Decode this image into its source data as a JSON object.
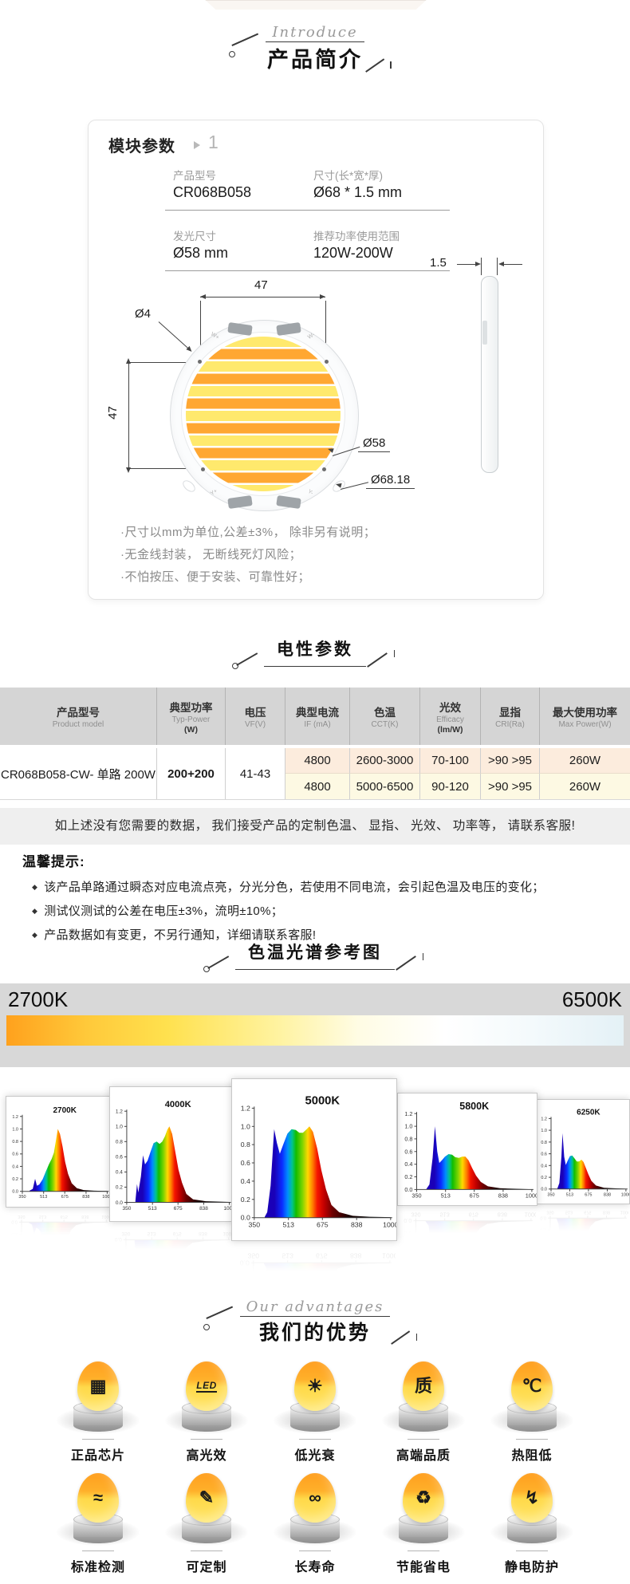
{
  "intro": {
    "script": "Introduce",
    "title": "产品简介"
  },
  "module_card": {
    "title": "模块参数",
    "badge": "1",
    "specs": [
      {
        "label": "产品型号",
        "value": "CR068B058"
      },
      {
        "label": "尺寸(长*宽*厚)",
        "value": "Ø68 * 1.5 mm"
      },
      {
        "label": "发光尺寸",
        "value": "Ø58 mm"
      },
      {
        "label": "推荐功率使用范围",
        "value": "120W-200W"
      }
    ],
    "drawing": {
      "dim_top": "47",
      "dim_left": "47",
      "dim_hole": "Ø4",
      "dim_les": "Ø58",
      "dim_outer": "Ø68.18",
      "dim_thickness": "1.5",
      "pads": {
        "top_left": "W+",
        "top_right": "W-",
        "bottom_left": "Y+",
        "bottom_right": "Y-"
      }
    },
    "notes": [
      "·尺寸以mm为单位,公差±3%， 除非另有说明；",
      "·无金线封装， 无断线死灯风险；",
      "·不怕按压、便于安装、可靠性好；"
    ]
  },
  "electrical": {
    "title": "电性参数",
    "columns": [
      {
        "cn": "产品型号",
        "sub": "Product model"
      },
      {
        "cn": "典型功率",
        "sub": "Typ-Power",
        "sub2": "(W)"
      },
      {
        "cn": "电压",
        "sub": "VF(V)"
      },
      {
        "cn": "典型电流",
        "sub": "IF (mA)"
      },
      {
        "cn": "色温",
        "sub": "CCT(K)"
      },
      {
        "cn": "光效",
        "sub": "Efficacy",
        "sub2": "(lm/W)"
      },
      {
        "cn": "显指",
        "sub": "CRI(Ra)"
      },
      {
        "cn": "最大使用功率",
        "sub": "Max Power(W)"
      }
    ],
    "row": {
      "model": "CR068B058-CW- 单路 200W",
      "power": "200+200",
      "voltage": "41-43",
      "sub_rows": [
        {
          "current": "4800",
          "cct": "2600-3000",
          "efficacy": "70-100",
          "cri": ">90 >95",
          "max_power": "260W"
        },
        {
          "current": "4800",
          "cct": "5000-6500",
          "efficacy": "90-120",
          "cri": ">90 >95",
          "max_power": "260W"
        }
      ]
    },
    "notice": "如上述没有您需要的数据， 我们接受产品的定制色温、 显指、 光效、 功率等， 请联系客服!",
    "tips_title": "温馨提示:",
    "tips": [
      "该产品单路通过瞬态对应电流点亮，分光分色，若使用不同电流，会引起色温及电压的变化；",
      "测试仪测试的公差在电压±3%，流明±10%；",
      "产品数据如有变更，不另行通知，详细请联系客服!"
    ]
  },
  "spectrum_section": {
    "title": "色温光谱参考图",
    "left_label": "2700K",
    "right_label": "6500K",
    "bar_colors": [
      "#ffa11d",
      "#ffe14e",
      "#fff3a0",
      "#ffffff",
      "#e4f1f6"
    ],
    "wavelength_colors": [
      {
        "nm": 400,
        "color": "#1a00b8"
      },
      {
        "nm": 440,
        "color": "#0b2cff"
      },
      {
        "nm": 468,
        "color": "#008cff"
      },
      {
        "nm": 492,
        "color": "#00c48f"
      },
      {
        "nm": 512,
        "color": "#12bd00"
      },
      {
        "nm": 545,
        "color": "#7fd400"
      },
      {
        "nm": 572,
        "color": "#ffd800"
      },
      {
        "nm": 598,
        "color": "#ff7a00"
      },
      {
        "nm": 622,
        "color": "#f51500"
      },
      {
        "nm": 655,
        "color": "#c40000"
      },
      {
        "nm": 700,
        "color": "#6d0000"
      },
      {
        "nm": 780,
        "color": "#1c0000"
      },
      {
        "nm": 900,
        "color": "#000000"
      }
    ]
  },
  "chart_data": [
    {
      "type": "area",
      "title": "2700K",
      "xlim": [
        350,
        1000
      ],
      "ylim": [
        0,
        1.2
      ],
      "xticks": [
        350,
        513,
        675,
        838,
        1000
      ],
      "yticks": [
        0,
        0.2,
        0.4,
        0.6,
        0.8,
        1.0,
        1.2
      ],
      "points": [
        [
          405,
          0.01
        ],
        [
          430,
          0.04
        ],
        [
          448,
          0.2
        ],
        [
          462,
          0.09
        ],
        [
          480,
          0.11
        ],
        [
          505,
          0.19
        ],
        [
          530,
          0.32
        ],
        [
          555,
          0.44
        ],
        [
          575,
          0.52
        ],
        [
          592,
          0.62
        ],
        [
          608,
          0.82
        ],
        [
          622,
          1.0
        ],
        [
          638,
          0.92
        ],
        [
          658,
          0.72
        ],
        [
          678,
          0.47
        ],
        [
          700,
          0.28
        ],
        [
          728,
          0.13
        ],
        [
          768,
          0.05
        ],
        [
          820,
          0.02
        ],
        [
          900,
          0.01
        ],
        [
          1000,
          0.005
        ]
      ]
    },
    {
      "type": "area",
      "title": "4000K",
      "xlim": [
        350,
        1000
      ],
      "ylim": [
        0,
        1.2
      ],
      "xticks": [
        350,
        513,
        675,
        838,
        1000
      ],
      "yticks": [
        0,
        0.2,
        0.4,
        0.6,
        0.8,
        1.0,
        1.2
      ],
      "points": [
        [
          405,
          0.02
        ],
        [
          415,
          0.24
        ],
        [
          423,
          0.13
        ],
        [
          440,
          0.34
        ],
        [
          453,
          0.62
        ],
        [
          466,
          0.5
        ],
        [
          482,
          0.55
        ],
        [
          500,
          0.66
        ],
        [
          520,
          0.78
        ],
        [
          540,
          0.8
        ],
        [
          558,
          0.77
        ],
        [
          575,
          0.8
        ],
        [
          592,
          0.87
        ],
        [
          608,
          0.96
        ],
        [
          620,
          1.0
        ],
        [
          638,
          0.9
        ],
        [
          658,
          0.66
        ],
        [
          678,
          0.43
        ],
        [
          700,
          0.26
        ],
        [
          728,
          0.11
        ],
        [
          770,
          0.04
        ],
        [
          850,
          0.015
        ],
        [
          1000,
          0.005
        ]
      ]
    },
    {
      "type": "area",
      "title": "5000K",
      "xlim": [
        350,
        1000
      ],
      "ylim": [
        0,
        1.2
      ],
      "xticks": [
        350,
        513,
        675,
        838,
        1000
      ],
      "yticks": [
        0,
        0.2,
        0.4,
        0.6,
        0.8,
        1.0,
        1.2
      ],
      "points": [
        [
          400,
          0.01
        ],
        [
          412,
          0.06
        ],
        [
          428,
          0.35
        ],
        [
          445,
          0.97
        ],
        [
          458,
          0.82
        ],
        [
          472,
          0.7
        ],
        [
          488,
          0.8
        ],
        [
          508,
          0.92
        ],
        [
          528,
          0.97
        ],
        [
          548,
          0.96
        ],
        [
          565,
          0.93
        ],
        [
          582,
          0.93
        ],
        [
          600,
          0.97
        ],
        [
          613,
          1.0
        ],
        [
          630,
          0.94
        ],
        [
          650,
          0.76
        ],
        [
          670,
          0.52
        ],
        [
          692,
          0.31
        ],
        [
          718,
          0.14
        ],
        [
          755,
          0.06
        ],
        [
          820,
          0.02
        ],
        [
          900,
          0.01
        ],
        [
          1000,
          0.005
        ]
      ]
    },
    {
      "type": "area",
      "title": "5800K",
      "xlim": [
        350,
        1000
      ],
      "ylim": [
        0,
        1.2
      ],
      "xticks": [
        350,
        513,
        675,
        838,
        1000
      ],
      "yticks": [
        0,
        0.2,
        0.4,
        0.6,
        0.8,
        1.0,
        1.2
      ],
      "points": [
        [
          405,
          0.01
        ],
        [
          422,
          0.08
        ],
        [
          440,
          0.5
        ],
        [
          453,
          1.0
        ],
        [
          466,
          0.6
        ],
        [
          478,
          0.42
        ],
        [
          492,
          0.46
        ],
        [
          510,
          0.52
        ],
        [
          530,
          0.56
        ],
        [
          550,
          0.55
        ],
        [
          568,
          0.51
        ],
        [
          588,
          0.5
        ],
        [
          608,
          0.52
        ],
        [
          625,
          0.52
        ],
        [
          643,
          0.46
        ],
        [
          663,
          0.34
        ],
        [
          685,
          0.22
        ],
        [
          712,
          0.12
        ],
        [
          752,
          0.05
        ],
        [
          820,
          0.02
        ],
        [
          1000,
          0.004
        ]
      ]
    },
    {
      "type": "area",
      "title": "6250K",
      "xlim": [
        350,
        1000
      ],
      "ylim": [
        0,
        1.2
      ],
      "xticks": [
        350,
        513,
        675,
        838,
        1000
      ],
      "yticks": [
        0,
        0.2,
        0.4,
        0.6,
        0.8,
        1.0,
        1.2
      ],
      "points": [
        [
          405,
          0.01
        ],
        [
          422,
          0.1
        ],
        [
          440,
          0.55
        ],
        [
          450,
          0.95
        ],
        [
          464,
          0.55
        ],
        [
          478,
          0.41
        ],
        [
          494,
          0.48
        ],
        [
          514,
          0.56
        ],
        [
          534,
          0.57
        ],
        [
          554,
          0.52
        ],
        [
          574,
          0.47
        ],
        [
          594,
          0.47
        ],
        [
          614,
          0.5
        ],
        [
          632,
          0.46
        ],
        [
          652,
          0.36
        ],
        [
          674,
          0.25
        ],
        [
          700,
          0.14
        ],
        [
          740,
          0.06
        ],
        [
          810,
          0.02
        ],
        [
          1000,
          0.004
        ]
      ]
    }
  ],
  "advantages": {
    "script": "Our advantages",
    "title": "我们的优势",
    "items": [
      {
        "label": "正品芯片",
        "icon": "chip-icon",
        "glyph": "▦"
      },
      {
        "label": "高光效",
        "icon": "led-icon",
        "glyph": "LED"
      },
      {
        "label": "低光衰",
        "icon": "low-decay-bulb-icon",
        "glyph": "☀"
      },
      {
        "label": "高端品质",
        "icon": "quality-shield-icon",
        "glyph": "质"
      },
      {
        "label": "热阻低",
        "icon": "thermometer-icon",
        "glyph": "℃"
      },
      {
        "label": "标准检测",
        "icon": "standard-test-magnifier-icon",
        "glyph": "≈"
      },
      {
        "label": "可定制",
        "icon": "customizable-pencil-icon",
        "glyph": "✎"
      },
      {
        "label": "长寿命",
        "icon": "long-life-icon",
        "glyph": "∞"
      },
      {
        "label": "节能省电",
        "icon": "energy-saving-icon",
        "glyph": "♻"
      },
      {
        "label": "静电防护",
        "icon": "esd-protection-shield-icon",
        "glyph": "↯"
      }
    ]
  }
}
